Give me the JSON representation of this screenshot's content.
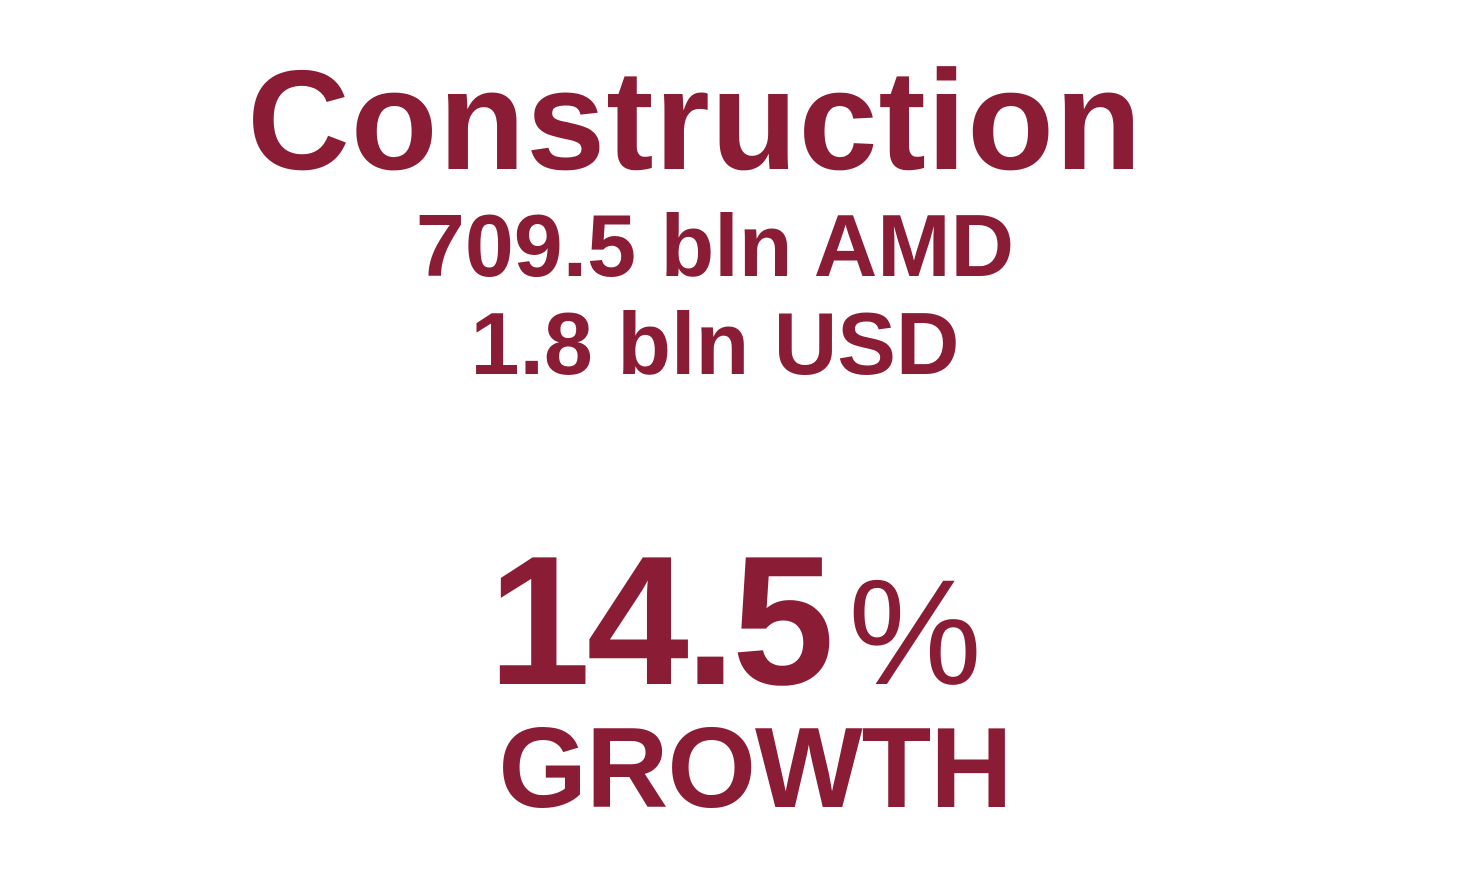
{
  "colors": {
    "accent": "#8b1c35",
    "background": "#ffffff"
  },
  "sector": {
    "title": "Construction",
    "value_amd": "709.5 bln AMD",
    "value_usd": "1.8 bln USD",
    "growth_number": "14.5",
    "growth_unit": "%",
    "growth_label": "GROWTH"
  }
}
